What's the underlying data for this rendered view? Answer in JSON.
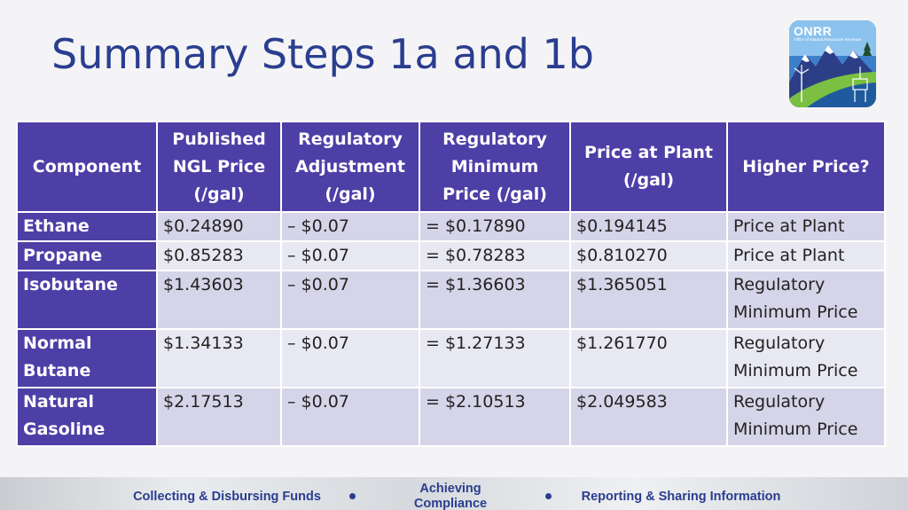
{
  "title": "Summary Steps 1a and 1b",
  "logo": {
    "name": "ONRR",
    "subtitle": "Office of Natural Resources Revenue"
  },
  "table": {
    "headers": [
      "Component",
      "Published NGL Price (/gal)",
      "Regulatory Adjustment (/gal)",
      "Regulatory Minimum Price (/gal)",
      "Price at Plant (/gal)",
      "Higher Price?"
    ],
    "rows": [
      {
        "component": "Ethane",
        "published": "$0.24890",
        "adjustment": "– $0.07",
        "minimum": "= $0.17890",
        "plant": "$0.194145",
        "higher": "Price at Plant"
      },
      {
        "component": "Propane",
        "published": "$0.85283",
        "adjustment": "– $0.07",
        "minimum": "= $0.78283",
        "plant": "$0.810270",
        "higher": "Price at Plant"
      },
      {
        "component": "Isobutane",
        "published": "$1.43603",
        "adjustment": "– $0.07",
        "minimum": "= $1.36603",
        "plant": "$1.365051",
        "higher": "Regulatory Minimum Price"
      },
      {
        "component": "Normal Butane",
        "published": "$1.34133",
        "adjustment": "– $0.07",
        "minimum": "= $1.27133",
        "plant": "$1.261770",
        "higher": "Regulatory Minimum Price"
      },
      {
        "component": "Natural Gasoline",
        "published": "$2.17513",
        "adjustment": "– $0.07",
        "minimum": "= $2.10513",
        "plant": "$2.049583",
        "higher": "Regulatory Minimum Price"
      }
    ]
  },
  "footer": {
    "left": "Collecting & Disbursing Funds",
    "center": "Achieving Compliance",
    "right": "Reporting & Sharing Information"
  },
  "colors": {
    "title": "#2a3d8f",
    "header_bg": "#4d3fa6",
    "row_odd": "#d5d4e8",
    "row_even": "#e8e8f2"
  }
}
